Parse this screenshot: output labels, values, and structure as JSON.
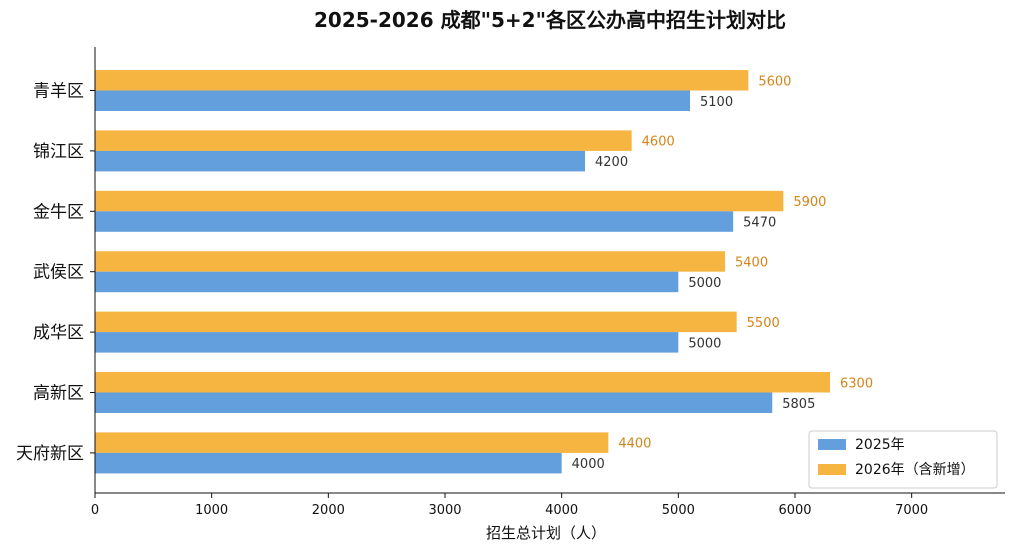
{
  "chart_data": {
    "type": "bar",
    "orientation": "horizontal",
    "title": "2025-2026 成都\"5+2\"各区公办高中招生计划对比",
    "xlabel": "招生总计划（人）",
    "ylabel": "",
    "categories": [
      "青羊区",
      "锦江区",
      "金牛区",
      "武侯区",
      "成华区",
      "高新区",
      "天府新区"
    ],
    "series": [
      {
        "name": "2025年",
        "color": "#629fdc",
        "label_color": "#333333",
        "values": [
          5100,
          4200,
          5470,
          5000,
          5000,
          5805,
          4000
        ]
      },
      {
        "name": "2026年（含新增）",
        "color": "#f5b540",
        "label_color": "#d4841a",
        "values": [
          5600,
          4600,
          5900,
          5400,
          5500,
          6300,
          4400
        ]
      }
    ],
    "xlim": [
      0,
      7800
    ],
    "xticks": [
      0,
      1000,
      2000,
      3000,
      4000,
      5000,
      6000,
      7000
    ],
    "grid": false,
    "legend_position": "bottom-right"
  }
}
